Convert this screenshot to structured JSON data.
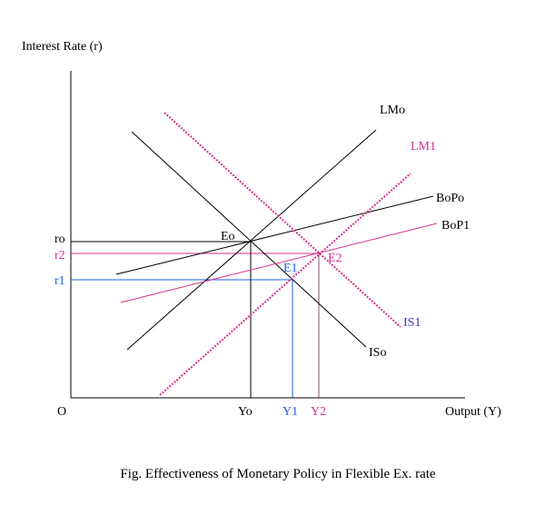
{
  "axes": {
    "y_label": "Interest Rate (r)",
    "x_label": "Output (Y)",
    "origin": "O"
  },
  "curves": {
    "lm0": "LMo",
    "lm1": "LM1",
    "bop0": "BoPo",
    "bop1": "BoP1",
    "is0": "ISo",
    "is1": "IS1"
  },
  "points": {
    "e0": "Eo",
    "e1": "E1",
    "e2": "E2"
  },
  "y_ticks": {
    "r0": "ro",
    "r2": "r2",
    "r1": "r1"
  },
  "x_ticks": {
    "y0": "Yo",
    "y1": "Y1",
    "y2": "Y2"
  },
  "caption": "Fig. Effectiveness of Monetary Policy in Flexible Ex. rate",
  "colors": {
    "black": "#000000",
    "magenta": "#d6308f",
    "blue": "#1f5fe0",
    "purple": "#4a2fc0"
  }
}
